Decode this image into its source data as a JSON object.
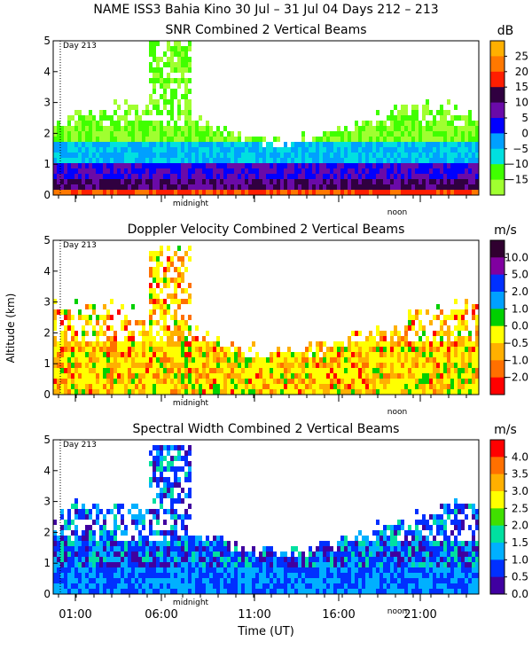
{
  "figure": {
    "title": "NAME ISS3 Bahia Kino   30 Jul – 31 Jul 04 Days 212 – 213",
    "xlabel": "Time (UT)",
    "ylabel": "Altitude (km)",
    "day_marker": "Day 213",
    "midnight_label": "midnight",
    "noon_label": "noon"
  },
  "chart_data": [
    {
      "type": "heatmap",
      "title": "SNR Combined 2 Vertical Beams",
      "unit": "dB",
      "ylim": [
        0,
        5
      ],
      "yticks": [
        0,
        1,
        2,
        3,
        4,
        5
      ],
      "colorbar": {
        "labels": [
          "25",
          "20",
          "15",
          "10",
          "5",
          "0",
          "−5",
          "−10",
          "−15"
        ],
        "colors": [
          "#ffb000",
          "#ff7800",
          "#ff1e00",
          "#300040",
          "#6a0aa8",
          "#0000ff",
          "#00a0ff",
          "#00e0e0",
          "#40ff00",
          "#a0ff30"
        ]
      }
    },
    {
      "type": "heatmap",
      "title": "Doppler Velocity Combined 2 Vertical Beams",
      "unit": "m/s",
      "ylim": [
        0,
        5
      ],
      "yticks": [
        0,
        1,
        2,
        3,
        4,
        5
      ],
      "colorbar": {
        "labels": [
          "10.0",
          "5.0",
          "2.0",
          "1.0",
          "0.0",
          "−0.5",
          "−1.0",
          "−2.0"
        ],
        "colors": [
          "#300030",
          "#8000a0",
          "#0030ff",
          "#00a0ff",
          "#00d000",
          "#ffff00",
          "#ffb000",
          "#ff7000",
          "#ff0000"
        ]
      }
    },
    {
      "type": "heatmap",
      "title": "Spectral Width Combined 2 Vertical Beams",
      "unit": "m/s",
      "ylim": [
        0,
        5
      ],
      "yticks": [
        0,
        1,
        2,
        3,
        4,
        5
      ],
      "colorbar": {
        "labels": [
          "4.0",
          "3.5",
          "3.0",
          "2.5",
          "2.0",
          "1.5",
          "1.0",
          "0.5",
          "0.0"
        ],
        "colors": [
          "#ff0000",
          "#ff7000",
          "#ffb000",
          "#ffff00",
          "#40e000",
          "#00e0a0",
          "#00b0ff",
          "#0030ff",
          "#4000a0"
        ]
      }
    }
  ],
  "x_axis": {
    "ticks": [
      "01:00",
      "06:00",
      "11:00",
      "16:00",
      "21:00"
    ]
  }
}
